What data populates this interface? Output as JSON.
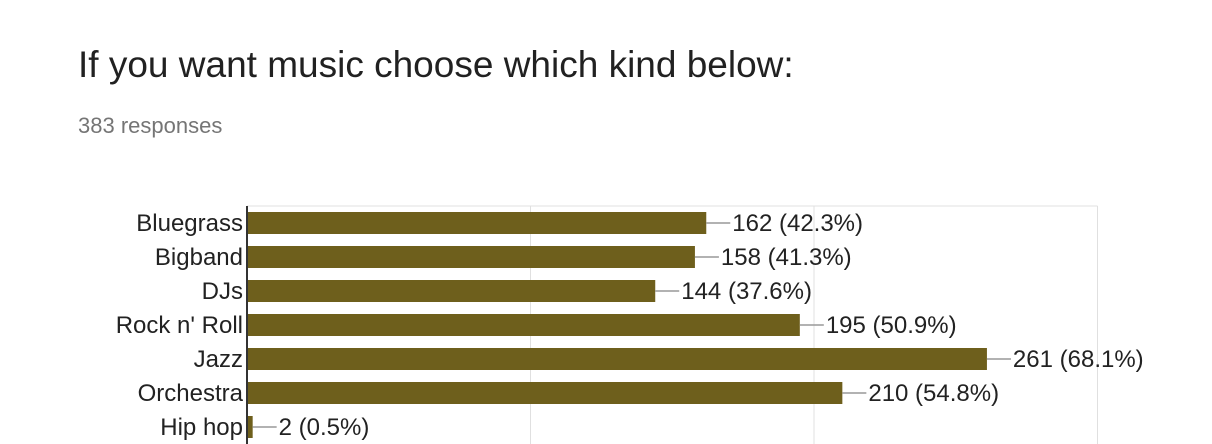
{
  "question": {
    "title": "If you want music choose which kind below:",
    "responses": "383 responses"
  },
  "colors": {
    "bar": "#6e5f1c",
    "axis": "#333333",
    "grid": "#e0e0e0",
    "leader": "#999999"
  },
  "chart_data": {
    "type": "bar",
    "orientation": "horizontal",
    "categories": [
      "Bluegrass",
      "Bigband",
      "DJs",
      "Rock n' Roll",
      "Jazz",
      "Orchestra",
      "Hip hop"
    ],
    "values": [
      162,
      158,
      144,
      195,
      261,
      210,
      2
    ],
    "data_labels": [
      "162 (42.3%)",
      "158 (41.3%)",
      "144 (37.6%)",
      "195 (50.9%)",
      "261 (68.1%)",
      "210 (54.8%)",
      "2 (0.5%)"
    ],
    "xlim": [
      0,
      300
    ],
    "grid": true,
    "legend": "none"
  }
}
